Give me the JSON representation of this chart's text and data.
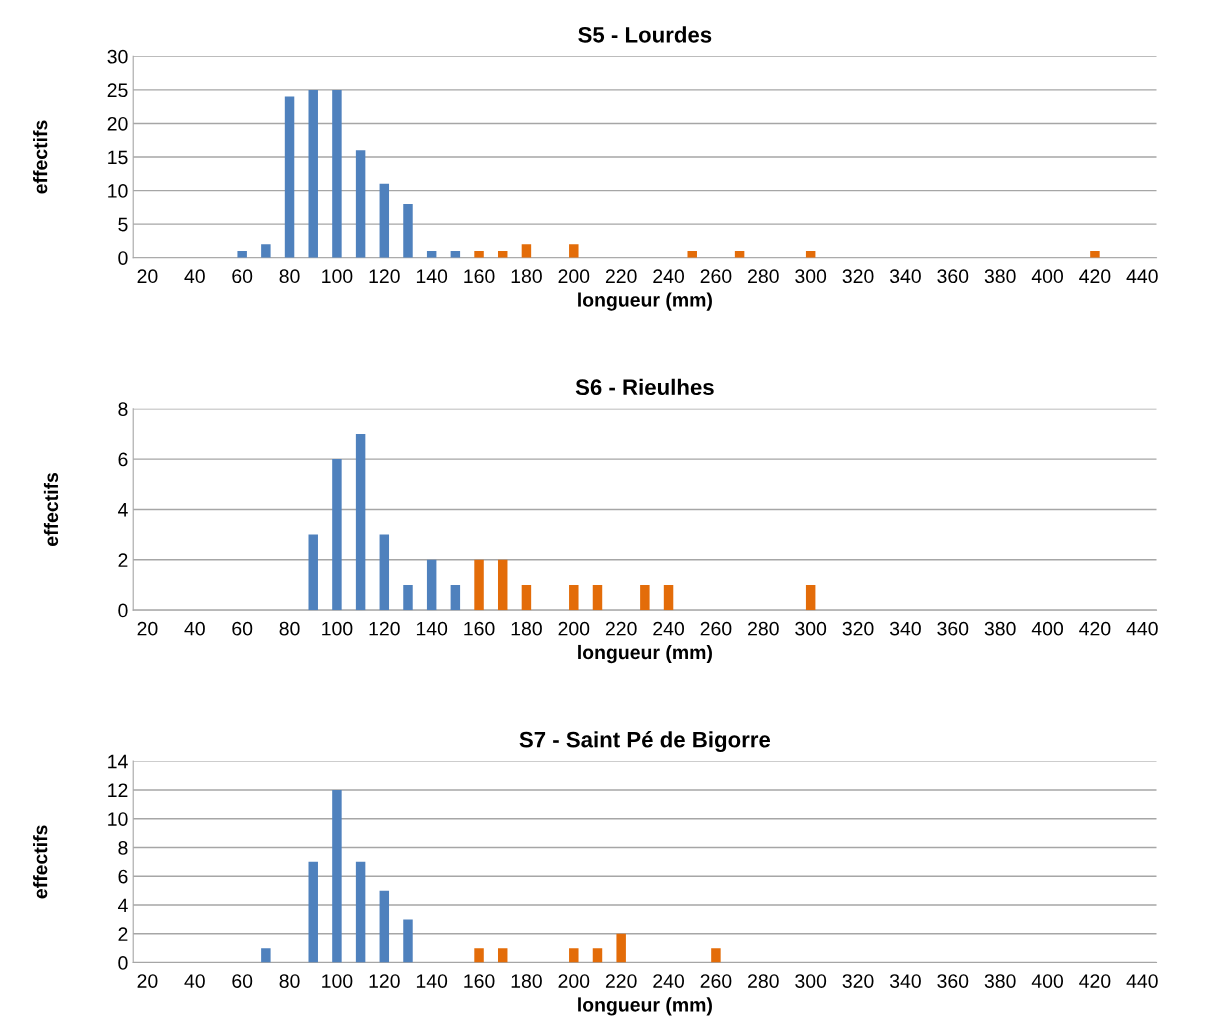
{
  "chart_data": [
    {
      "type": "bar",
      "title": "S5 - Lourdes",
      "xlabel": "longueur (mm)",
      "ylabel": "effectifs",
      "categories": [
        "20",
        null,
        "40",
        null,
        "60",
        null,
        "80",
        null,
        "100",
        null,
        "120",
        null,
        "140",
        null,
        "160",
        null,
        "180",
        null,
        "200",
        null,
        "220",
        null,
        "240",
        null,
        "260",
        null,
        "280",
        null,
        "300",
        null,
        "320",
        null,
        "340",
        null,
        "360",
        null,
        "380",
        null,
        "400",
        null,
        "420",
        null,
        "440"
      ],
      "series": [
        {
          "color": "#4f81bd",
          "values": [
            null,
            null,
            null,
            null,
            1,
            2,
            24,
            25,
            25,
            16,
            11,
            8,
            1,
            1,
            null,
            null,
            null,
            null,
            null,
            null,
            null,
            null,
            null,
            null,
            null,
            null,
            null,
            null,
            null,
            null,
            null,
            null,
            null,
            null,
            null,
            null,
            null,
            null,
            null,
            null,
            null,
            null,
            null
          ]
        },
        {
          "color": "#e36c09",
          "values": [
            null,
            null,
            null,
            null,
            null,
            null,
            null,
            null,
            null,
            null,
            null,
            null,
            null,
            null,
            1,
            1,
            2,
            null,
            2,
            null,
            null,
            null,
            null,
            1,
            null,
            1,
            null,
            null,
            1,
            null,
            null,
            null,
            null,
            null,
            null,
            null,
            null,
            null,
            null,
            null,
            1,
            null,
            null
          ]
        }
      ],
      "ylim": [
        0,
        30
      ],
      "yticks": [
        0,
        5,
        10,
        15,
        20,
        25,
        30
      ],
      "grid": "y",
      "legend": false
    },
    {
      "type": "bar",
      "title": "S6 - Rieulhes",
      "xlabel": "longueur (mm)",
      "ylabel": "effectifs",
      "categories": [
        "20",
        null,
        "40",
        null,
        "60",
        null,
        "80",
        null,
        "100",
        null,
        "120",
        null,
        "140",
        null,
        "160",
        null,
        "180",
        null,
        "200",
        null,
        "220",
        null,
        "240",
        null,
        "260",
        null,
        "280",
        null,
        "300",
        null,
        "320",
        null,
        "340",
        null,
        "360",
        null,
        "380",
        null,
        "400",
        null,
        "420",
        null,
        "440"
      ],
      "series": [
        {
          "color": "#4f81bd",
          "values": [
            null,
            null,
            null,
            null,
            null,
            null,
            null,
            3,
            6,
            7,
            3,
            1,
            2,
            1,
            null,
            null,
            null,
            null,
            null,
            null,
            null,
            null,
            null,
            null,
            null,
            null,
            null,
            null,
            null,
            null,
            null,
            null,
            null,
            null,
            null,
            null,
            null,
            null,
            null,
            null,
            null,
            null,
            null
          ]
        },
        {
          "color": "#e36c09",
          "values": [
            null,
            null,
            null,
            null,
            null,
            null,
            null,
            null,
            null,
            null,
            null,
            null,
            null,
            null,
            2,
            2,
            1,
            null,
            1,
            1,
            null,
            1,
            1,
            null,
            null,
            null,
            null,
            null,
            1,
            null,
            null,
            null,
            null,
            null,
            null,
            null,
            null,
            null,
            null,
            null,
            null,
            null,
            null
          ]
        }
      ],
      "ylim": [
        0,
        8
      ],
      "yticks": [
        0,
        2,
        4,
        6,
        8
      ],
      "grid": "y",
      "legend": false
    },
    {
      "type": "bar",
      "title": "S7 - Saint Pé de Bigorre",
      "xlabel": "longueur (mm)",
      "ylabel": "effectifs",
      "categories": [
        "20",
        null,
        "40",
        null,
        "60",
        null,
        "80",
        null,
        "100",
        null,
        "120",
        null,
        "140",
        null,
        "160",
        null,
        "180",
        null,
        "200",
        null,
        "220",
        null,
        "240",
        null,
        "260",
        null,
        "280",
        null,
        "300",
        null,
        "320",
        null,
        "340",
        null,
        "360",
        null,
        "380",
        null,
        "400",
        null,
        "420",
        null,
        "440"
      ],
      "series": [
        {
          "color": "#4f81bd",
          "values": [
            null,
            null,
            null,
            null,
            null,
            1,
            null,
            7,
            12,
            7,
            5,
            3,
            null,
            null,
            null,
            null,
            null,
            null,
            null,
            null,
            null,
            null,
            null,
            null,
            null,
            null,
            null,
            null,
            null,
            null,
            null,
            null,
            null,
            null,
            null,
            null,
            null,
            null,
            null,
            null,
            null,
            null,
            null
          ]
        },
        {
          "color": "#e36c09",
          "values": [
            null,
            null,
            null,
            null,
            null,
            null,
            null,
            null,
            null,
            null,
            null,
            null,
            null,
            null,
            1,
            1,
            null,
            null,
            1,
            1,
            2,
            null,
            null,
            null,
            1,
            null,
            null,
            null,
            null,
            null,
            null,
            null,
            null,
            null,
            null,
            null,
            null,
            null,
            null,
            null,
            null,
            null,
            null
          ]
        }
      ],
      "ylim": [
        0,
        14
      ],
      "yticks": [
        0,
        2,
        4,
        6,
        8,
        10,
        12,
        14
      ],
      "grid": "y",
      "legend": false
    }
  ]
}
